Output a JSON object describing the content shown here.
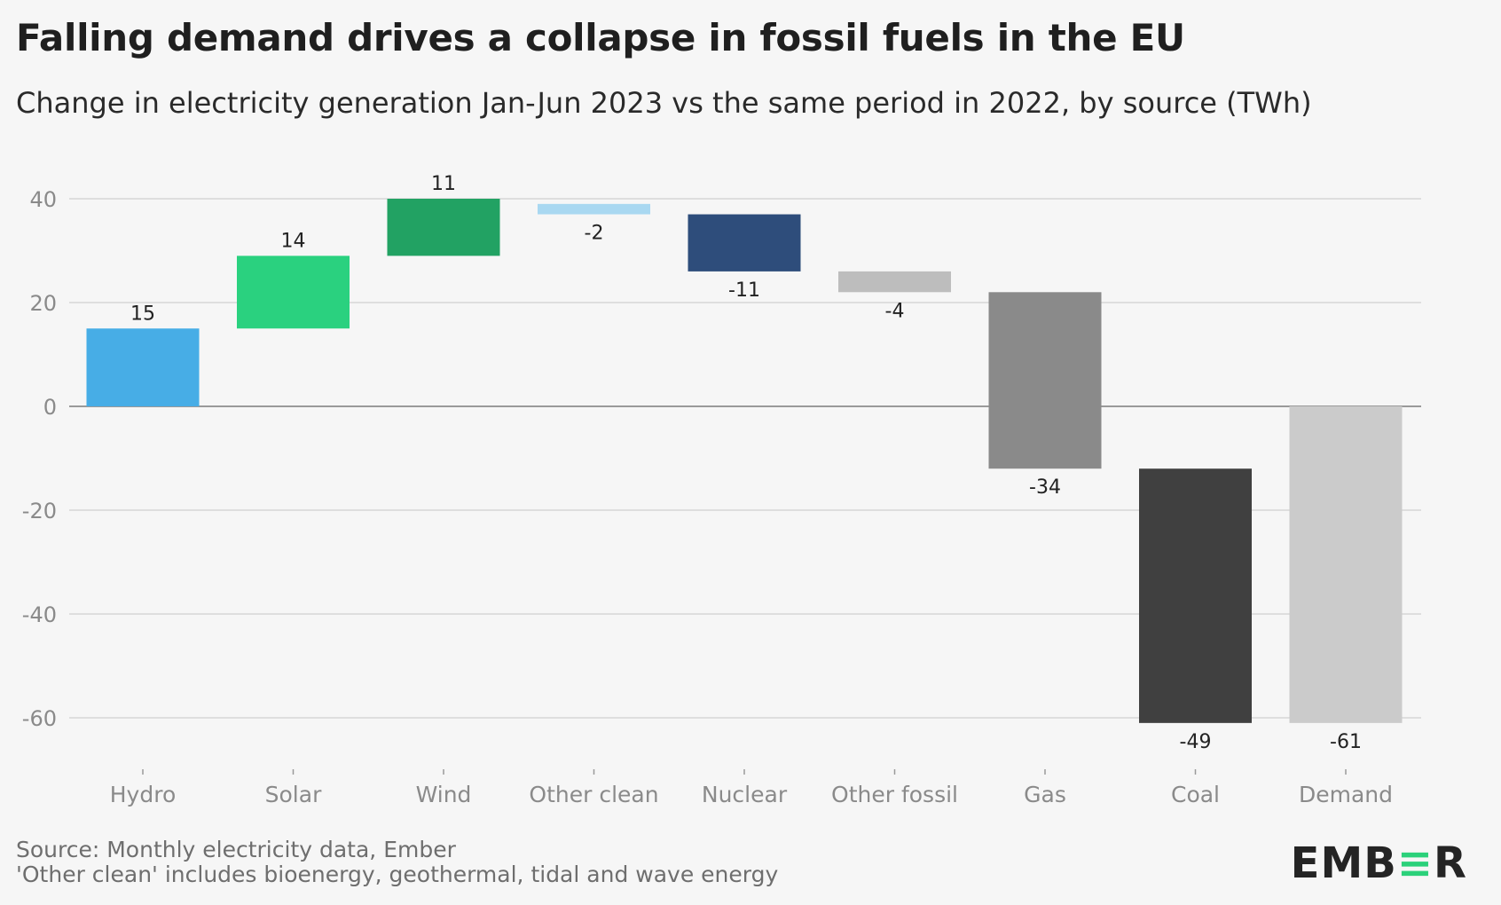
{
  "header": {
    "title": "Falling demand drives a collapse in fossil fuels in the EU",
    "subtitle": "Change in electricity generation Jan-Jun 2023 vs the same period in 2022, by source (TWh)"
  },
  "footer": {
    "source": "Source: Monthly electricity data, Ember",
    "note": "'Other clean' includes bioenergy, geothermal, tidal and wave energy"
  },
  "logo": {
    "part1": "EMB",
    "part2": "≡",
    "part3": "R"
  },
  "chart_data": {
    "type": "bar",
    "subtype": "waterfall",
    "title": "Falling demand drives a collapse in fossil fuels in the EU",
    "subtitle": "Change in electricity generation Jan-Jun 2023 vs the same period in 2022, by source (TWh)",
    "xlabel": "",
    "ylabel": "",
    "ylim": [
      -70,
      40
    ],
    "yticks": [
      40,
      20,
      0,
      -20,
      -40,
      -60
    ],
    "grid": true,
    "categories": [
      "Hydro",
      "Solar",
      "Wind",
      "Other clean",
      "Nuclear",
      "Other fossil",
      "Gas",
      "Coal",
      "Demand"
    ],
    "values": [
      15,
      14,
      11,
      -2,
      -11,
      -4,
      -34,
      -49,
      -61
    ],
    "data_labels": [
      "15",
      "14",
      "11",
      "-2",
      "-11",
      "-4",
      "-34",
      "-49",
      "-61"
    ],
    "bars": [
      {
        "category": "Hydro",
        "start": 0,
        "end": 15,
        "color": "#47ade6"
      },
      {
        "category": "Solar",
        "start": 15,
        "end": 29,
        "color": "#2ad17f"
      },
      {
        "category": "Wind",
        "start": 29,
        "end": 40,
        "color": "#22a263"
      },
      {
        "category": "Other clean",
        "start": 39,
        "end": 37,
        "color": "#a9d8f1"
      },
      {
        "category": "Nuclear",
        "start": 37,
        "end": 26,
        "color": "#2e4d7b"
      },
      {
        "category": "Other fossil",
        "start": 26,
        "end": 22,
        "color": "#bdbdbd"
      },
      {
        "category": "Gas",
        "start": 22,
        "end": -12,
        "color": "#8a8a8a"
      },
      {
        "category": "Coal",
        "start": -12,
        "end": -61,
        "color": "#404040"
      },
      {
        "category": "Demand",
        "start": 0,
        "end": -61,
        "color": "#cbcbcb"
      }
    ]
  }
}
